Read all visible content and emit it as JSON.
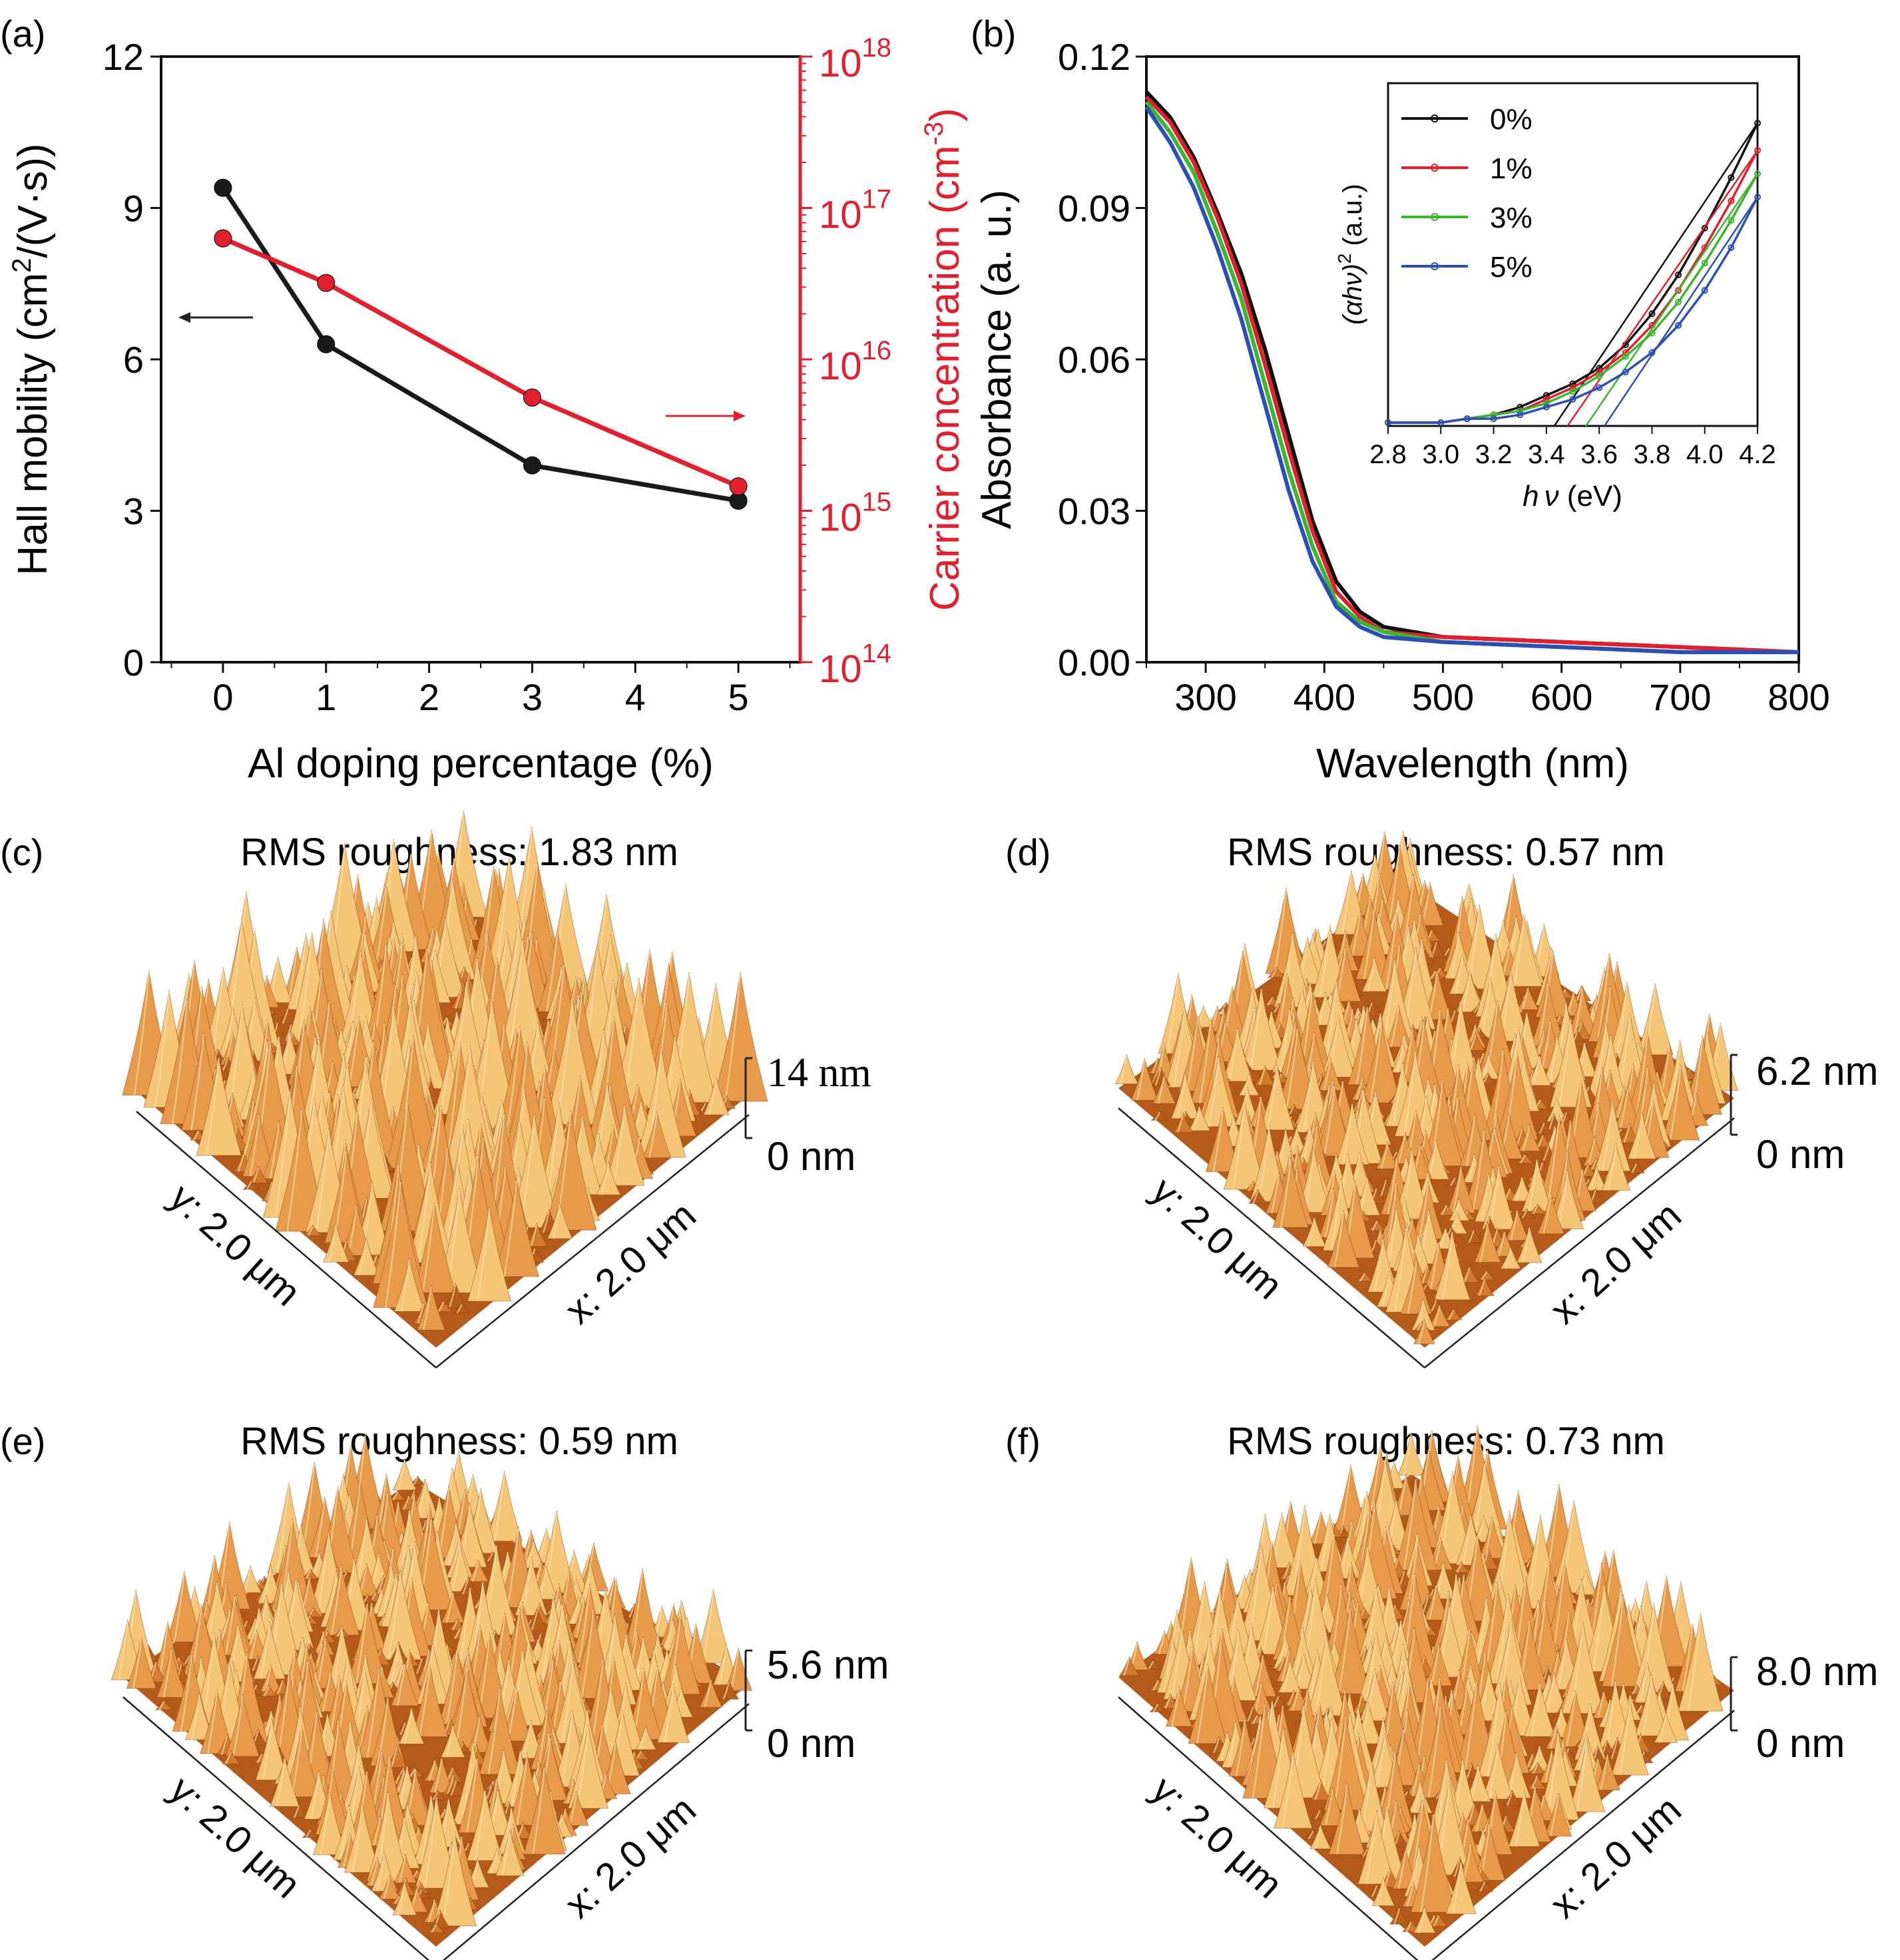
{
  "panels": {
    "a": {
      "label": "(a)"
    },
    "b": {
      "label": "(b)"
    },
    "c": {
      "label": "(c)"
    },
    "d": {
      "label": "(d)"
    },
    "e": {
      "label": "(e)"
    },
    "f": {
      "label": "(f)"
    }
  },
  "chart_data": [
    {
      "panel": "a",
      "type": "line",
      "xlabel": "Al doping percentage (%)",
      "ylabel": "Hall mobility (cm2/(V·s))",
      "ylabel_parts": [
        "Hall mobility (cm",
        "2",
        "/(V·s))"
      ],
      "y2label": "Carrier concentration (cm-3)",
      "y2label_parts": [
        "Carrier concentration (cm",
        "-3",
        ")"
      ],
      "xlim": [
        -0.6,
        5.6
      ],
      "ylim": [
        0,
        12
      ],
      "y2lim_log10": [
        14,
        18
      ],
      "y2scale": "log",
      "x_ticks": [
        "0",
        "1",
        "2",
        "3",
        "4",
        "5"
      ],
      "y_ticks": [
        "0",
        "3",
        "6",
        "9",
        "12"
      ],
      "y2_ticks": [
        {
          "base": "10",
          "exp": "14"
        },
        {
          "base": "10",
          "exp": "15"
        },
        {
          "base": "10",
          "exp": "16"
        },
        {
          "base": "10",
          "exp": "17"
        },
        {
          "base": "10",
          "exp": "18"
        }
      ],
      "series": [
        {
          "color": "#1a1a1a",
          "axis": "left",
          "x": [
            0,
            1,
            3,
            5
          ],
          "y": [
            9.4,
            6.3,
            3.9,
            3.2
          ]
        },
        {
          "color": "#e0202e",
          "axis": "right",
          "x": [
            0,
            1,
            3,
            5
          ],
          "y": [
            6.3e+16,
            3.2e+16,
            5600000000000000.0,
            1450000000000000.0
          ]
        }
      ]
    },
    {
      "panel": "b",
      "type": "line",
      "xlabel": "Wavelength (nm)",
      "ylabel": "Absorbance (a. u.)",
      "xlim": [
        250,
        800
      ],
      "ylim": [
        0,
        0.12
      ],
      "x_ticks": [
        "300",
        "400",
        "500",
        "600",
        "700",
        "800"
      ],
      "y_ticks": [
        "0.00",
        "0.03",
        "0.06",
        "0.09",
        "0.12"
      ],
      "series": [
        {
          "name": "0%",
          "color": "#111111",
          "x": [
            250,
            270,
            290,
            310,
            330,
            350,
            370,
            390,
            410,
            430,
            450,
            500,
            600,
            700,
            800
          ],
          "y": [
            0.113,
            0.108,
            0.1,
            0.089,
            0.077,
            0.062,
            0.045,
            0.028,
            0.016,
            0.01,
            0.007,
            0.005,
            0.004,
            0.003,
            0.002
          ]
        },
        {
          "name": "1%",
          "color": "#e0202e",
          "x": [
            250,
            270,
            290,
            310,
            330,
            350,
            370,
            390,
            410,
            430,
            450,
            500,
            600,
            700,
            800
          ],
          "y": [
            0.112,
            0.107,
            0.099,
            0.088,
            0.075,
            0.059,
            0.042,
            0.026,
            0.014,
            0.009,
            0.006,
            0.005,
            0.004,
            0.003,
            0.002
          ]
        },
        {
          "name": "3%",
          "color": "#3cb531",
          "x": [
            250,
            270,
            290,
            310,
            330,
            350,
            370,
            390,
            410,
            430,
            450,
            500,
            600,
            700,
            800
          ],
          "y": [
            0.111,
            0.105,
            0.097,
            0.085,
            0.072,
            0.055,
            0.038,
            0.023,
            0.012,
            0.008,
            0.006,
            0.004,
            0.003,
            0.002,
            0.002
          ]
        },
        {
          "name": "5%",
          "color": "#2b4fb5",
          "x": [
            250,
            270,
            290,
            310,
            330,
            350,
            370,
            390,
            410,
            430,
            450,
            500,
            600,
            700,
            800
          ],
          "y": [
            0.11,
            0.103,
            0.094,
            0.082,
            0.068,
            0.051,
            0.034,
            0.02,
            0.011,
            0.007,
            0.005,
            0.004,
            0.003,
            0.002,
            0.002
          ]
        }
      ],
      "inset": {
        "type": "line",
        "xlabel": "hν (eV)",
        "xlabel_parts": [
          "h",
          "ν",
          " (eV)"
        ],
        "ylabel": "(αhν)2 (a.u.)",
        "ylabel_parts": [
          "(αhν)",
          "2",
          " (a.u.)"
        ],
        "xlim": [
          2.8,
          4.2
        ],
        "x_ticks": [
          "2.8",
          "3.0",
          "3.2",
          "3.4",
          "3.6",
          "3.8",
          "4.0",
          "4.2"
        ],
        "legend": [
          "0%",
          "1%",
          "3%",
          "5%"
        ],
        "series": [
          {
            "name": "0%",
            "color": "#111111",
            "x": [
              2.8,
              3.0,
              3.1,
              3.2,
              3.3,
              3.4,
              3.5,
              3.6,
              3.7,
              3.8,
              3.9,
              4.0,
              4.1,
              4.2
            ],
            "y": [
              0.0,
              0.0,
              0.01,
              0.02,
              0.04,
              0.07,
              0.1,
              0.14,
              0.2,
              0.28,
              0.38,
              0.5,
              0.63,
              0.77
            ],
            "tangent_x": [
              3.43,
              4.2
            ]
          },
          {
            "name": "1%",
            "color": "#e0202e",
            "x": [
              2.8,
              3.0,
              3.1,
              3.2,
              3.3,
              3.4,
              3.5,
              3.6,
              3.7,
              3.8,
              3.9,
              4.0,
              4.1,
              4.2
            ],
            "y": [
              0.0,
              0.0,
              0.01,
              0.02,
              0.03,
              0.06,
              0.09,
              0.13,
              0.18,
              0.25,
              0.34,
              0.45,
              0.57,
              0.7
            ],
            "tangent_x": [
              3.48,
              4.2
            ]
          },
          {
            "name": "3%",
            "color": "#3cb531",
            "x": [
              2.8,
              3.0,
              3.1,
              3.2,
              3.3,
              3.4,
              3.5,
              3.6,
              3.7,
              3.8,
              3.9,
              4.0,
              4.1,
              4.2
            ],
            "y": [
              0.0,
              0.0,
              0.01,
              0.02,
              0.03,
              0.05,
              0.08,
              0.12,
              0.17,
              0.23,
              0.31,
              0.41,
              0.52,
              0.64
            ],
            "tangent_x": [
              3.55,
              4.2
            ]
          },
          {
            "name": "5%",
            "color": "#2b4fb5",
            "x": [
              2.8,
              3.0,
              3.1,
              3.2,
              3.3,
              3.4,
              3.5,
              3.6,
              3.7,
              3.8,
              3.9,
              4.0,
              4.1,
              4.2
            ],
            "y": [
              0.0,
              0.0,
              0.01,
              0.01,
              0.02,
              0.04,
              0.06,
              0.09,
              0.13,
              0.18,
              0.25,
              0.34,
              0.45,
              0.58
            ],
            "tangent_x": [
              3.62,
              4.2
            ]
          }
        ]
      }
    }
  ],
  "afm": [
    {
      "panel": "c",
      "title": "RMS roughness: 1.83 nm",
      "zmax": "14 nm",
      "zmin": "0 nm",
      "xlabel": "x: 2.0 μm",
      "ylabel": "y: 2.0 μm",
      "peakiness": 1.0,
      "seed": 11
    },
    {
      "panel": "d",
      "title": "RMS roughness: 0.57 nm",
      "zmax": "6.2 nm",
      "zmin": "0 nm",
      "xlabel": "x: 2.0 μm",
      "ylabel": "y: 2.0 μm",
      "peakiness": 0.55,
      "seed": 23
    },
    {
      "panel": "e",
      "title": "RMS roughness: 0.59 nm",
      "zmax": "5.6 nm",
      "zmin": "0 nm",
      "xlabel": "x: 2.0 μm",
      "ylabel": "y: 2.0 μm",
      "peakiness": 0.6,
      "seed": 37
    },
    {
      "panel": "f",
      "title": "RMS roughness: 0.73 nm",
      "zmax": "8.0 nm",
      "zmin": "0 nm",
      "xlabel": "x: 2.0 μm",
      "ylabel": "y: 2.0 μm",
      "peakiness": 0.65,
      "seed": 53
    }
  ],
  "colors": {
    "black": "#1a1a1a",
    "red": "#e0202e",
    "afm_dark": "#7a3408",
    "afm_mid": "#c9691f",
    "afm_light": "#f3c27a"
  }
}
